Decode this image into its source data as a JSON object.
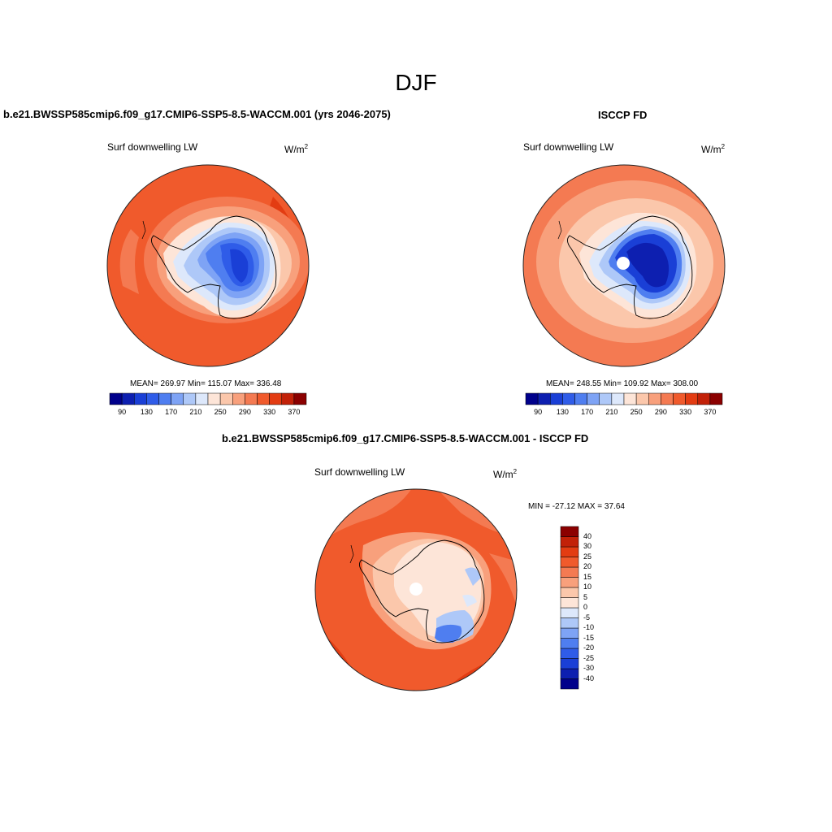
{
  "figure": {
    "season_title": "DJF"
  },
  "panels": {
    "model": {
      "title": "b.e21.BWSSP585cmip6.f09_g17.CMIP6-SSP5-8.5-WACCM.001 (yrs 2046-2075)",
      "variable": "Surf downwelling LW",
      "units_base": "W/m",
      "units_exp": "2",
      "stats": "MEAN= 269.97  Min= 115.07  Max= 336.48"
    },
    "obs": {
      "title": "ISCCP FD",
      "variable": "Surf downwelling LW",
      "units_base": "W/m",
      "units_exp": "2",
      "stats": "MEAN= 248.55  Min= 109.92  Max= 308.00"
    },
    "diff": {
      "title": "b.e21.BWSSP585cmip6.f09_g17.CMIP6-SSP5-8.5-WACCM.001 - ISCCP FD",
      "variable": "Surf downwelling LW",
      "units_base": "W/m",
      "units_exp": "2",
      "stats": "MIN = -27.12 MAX =  37.64"
    }
  },
  "colorbars": {
    "absolute": {
      "colors": [
        "#00008b",
        "#0d1fb0",
        "#1a3fd6",
        "#2f5ce8",
        "#4f7ef0",
        "#7ea3f5",
        "#aec8f8",
        "#dde8fb",
        "#fde5d8",
        "#fbc7ab",
        "#f8a07c",
        "#f47a52",
        "#f05a2c",
        "#e33c12",
        "#c22108",
        "#8b0000"
      ],
      "tick_labels": [
        "90",
        "130",
        "170",
        "210",
        "250",
        "290",
        "330",
        "370"
      ]
    },
    "difference": {
      "colors": [
        "#00008b",
        "#0d1fb0",
        "#1a3fd6",
        "#2f5ce8",
        "#4f7ef0",
        "#7ea3f5",
        "#aec8f8",
        "#dde8fb",
        "#fde5d8",
        "#fbc7ab",
        "#f8a07c",
        "#f47a52",
        "#f05a2c",
        "#e33c12",
        "#c22108",
        "#8b0000"
      ],
      "tick_labels": [
        "40",
        "30",
        "25",
        "20",
        "15",
        "10",
        "5",
        "0",
        "-5",
        "-10",
        "-15",
        "-20",
        "-25",
        "-30",
        "-40"
      ]
    }
  }
}
